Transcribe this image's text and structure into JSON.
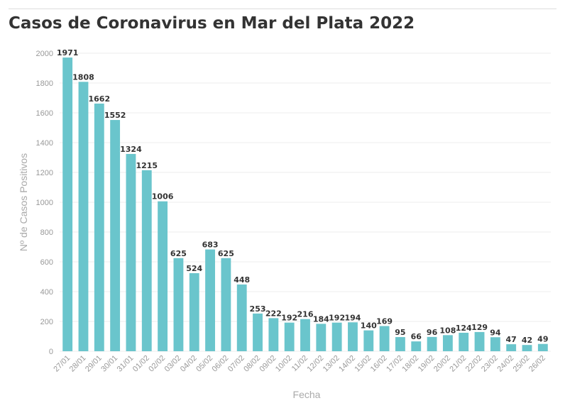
{
  "chart_data": {
    "type": "bar",
    "title": "Casos de Coronavirus en Mar del Plata 2022",
    "xlabel": "Fecha",
    "ylabel": "Nº de Casos Positivos",
    "ylim": [
      0,
      2000
    ],
    "yticks": [
      0,
      200,
      400,
      600,
      800,
      1000,
      1200,
      1400,
      1600,
      1800,
      2000
    ],
    "grid": true,
    "legend": "none",
    "color": "#6ac5cc",
    "categories": [
      "27/01",
      "28/01",
      "29/01",
      "30/01",
      "31/01",
      "01/02",
      "02/02",
      "03/02",
      "04/02",
      "05/02",
      "06/02",
      "07/02",
      "08/02",
      "09/02",
      "10/02",
      "11/02",
      "12/02",
      "13/02",
      "14/02",
      "15/02",
      "16/02",
      "17/02",
      "18/02",
      "19/02",
      "20/02",
      "21/02",
      "22/02",
      "23/02",
      "24/02",
      "25/02",
      "26/02"
    ],
    "values": [
      1971,
      1808,
      1662,
      1552,
      1324,
      1215,
      1006,
      625,
      524,
      683,
      625,
      448,
      253,
      222,
      192,
      216,
      184,
      192,
      194,
      140,
      169,
      95,
      66,
      96,
      108,
      124,
      129,
      94,
      47,
      42,
      49
    ]
  }
}
